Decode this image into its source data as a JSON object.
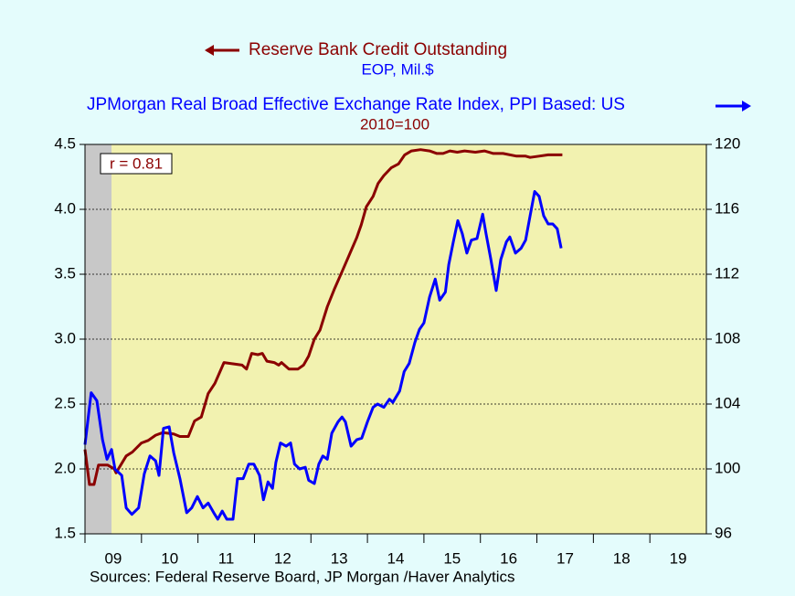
{
  "chart_data": {
    "type": "line",
    "series": [
      {
        "name": "Reserve Bank Credit Outstanding",
        "unit": "EOP, Mil.$",
        "color": "#8b0000",
        "axis": "y",
        "x": [
          2009.0,
          2009.08,
          2009.16,
          2009.24,
          2009.4,
          2009.52,
          2009.55,
          2009.73,
          2009.84,
          2010.0,
          2010.12,
          2010.25,
          2010.38,
          2010.57,
          2010.68,
          2010.83,
          2010.94,
          2011.06,
          2011.18,
          2011.3,
          2011.46,
          2011.62,
          2011.78,
          2011.86,
          2011.95,
          2012.06,
          2012.14,
          2012.22,
          2012.35,
          2012.43,
          2012.48,
          2012.61,
          2012.77,
          2012.87,
          2012.96,
          2013.06,
          2013.16,
          2013.29,
          2013.42,
          2013.55,
          2013.68,
          2013.81,
          2013.89,
          2013.98,
          2014.1,
          2014.19,
          2014.29,
          2014.42,
          2014.55,
          2014.66,
          2014.78,
          2014.94,
          2015.1,
          2015.23,
          2015.34,
          2015.46,
          2015.59,
          2015.72,
          2015.91,
          2016.07,
          2016.23,
          2016.4,
          2016.64,
          2016.8,
          2016.88,
          2017.04,
          2017.2,
          2017.45
        ],
        "values": [
          2.15,
          1.88,
          1.88,
          2.03,
          2.03,
          2.0,
          1.97,
          2.1,
          2.13,
          2.2,
          2.22,
          2.26,
          2.28,
          2.27,
          2.25,
          2.25,
          2.37,
          2.4,
          2.58,
          2.66,
          2.82,
          2.81,
          2.8,
          2.77,
          2.89,
          2.88,
          2.89,
          2.83,
          2.82,
          2.8,
          2.82,
          2.77,
          2.77,
          2.8,
          2.87,
          3.0,
          3.07,
          3.25,
          3.39,
          3.52,
          3.65,
          3.78,
          3.88,
          4.02,
          4.1,
          4.2,
          4.26,
          4.32,
          4.35,
          4.42,
          4.45,
          4.46,
          4.45,
          4.43,
          4.43,
          4.45,
          4.44,
          4.45,
          4.44,
          4.45,
          4.43,
          4.43,
          4.41,
          4.41,
          4.4,
          4.41,
          4.42,
          4.42
        ]
      },
      {
        "name": "JPMorgan Real Broad Effective Exchange Rate Index, PPI Based: US",
        "unit": "2010=100",
        "color": "#0000ff",
        "axis": "y2",
        "x": [
          2009.0,
          2009.11,
          2009.21,
          2009.31,
          2009.39,
          2009.47,
          2009.53,
          2009.65,
          2009.73,
          2009.83,
          2009.95,
          2010.05,
          2010.15,
          2010.25,
          2010.31,
          2010.39,
          2010.49,
          2010.57,
          2010.68,
          2010.8,
          2010.89,
          2010.99,
          2011.09,
          2011.18,
          2011.28,
          2011.35,
          2011.43,
          2011.51,
          2011.62,
          2011.7,
          2011.8,
          2011.9,
          2011.99,
          2012.09,
          2012.16,
          2012.24,
          2012.32,
          2012.38,
          2012.46,
          2012.56,
          2012.64,
          2012.71,
          2012.8,
          2012.9,
          2012.96,
          2013.06,
          2013.14,
          2013.21,
          2013.29,
          2013.37,
          2013.48,
          2013.55,
          2013.61,
          2013.71,
          2013.81,
          2013.9,
          2014.0,
          2014.1,
          2014.18,
          2014.29,
          2014.39,
          2014.45,
          2014.57,
          2014.65,
          2014.74,
          2014.84,
          2014.92,
          2015.0,
          2015.1,
          2015.2,
          2015.28,
          2015.38,
          2015.44,
          2015.52,
          2015.6,
          2015.68,
          2015.76,
          2015.84,
          2015.94,
          2016.04,
          2016.1,
          2016.18,
          2016.28,
          2016.36,
          2016.46,
          2016.52,
          2016.62,
          2016.72,
          2016.8,
          2016.88,
          2016.96,
          2017.04,
          2017.12,
          2017.2,
          2017.28,
          2017.36,
          2017.43
        ],
        "values": [
          101.5,
          104.7,
          104.2,
          101.8,
          100.6,
          101.2,
          100.0,
          99.6,
          97.6,
          97.2,
          97.6,
          99.7,
          100.8,
          100.5,
          99.6,
          102.5,
          102.6,
          101.0,
          99.4,
          97.3,
          97.6,
          98.3,
          97.6,
          97.9,
          97.3,
          96.9,
          97.4,
          96.9,
          96.9,
          99.4,
          99.4,
          100.3,
          100.3,
          99.6,
          98.1,
          99.2,
          98.8,
          100.4,
          101.6,
          101.4,
          101.6,
          100.3,
          100.0,
          100.1,
          99.3,
          99.1,
          100.3,
          100.8,
          100.6,
          102.2,
          102.9,
          103.2,
          102.9,
          101.4,
          101.8,
          101.9,
          102.9,
          103.8,
          104.0,
          103.8,
          104.3,
          104.1,
          104.8,
          106.0,
          106.5,
          107.8,
          108.6,
          109.0,
          110.6,
          111.7,
          110.4,
          110.9,
          112.6,
          114.0,
          115.3,
          114.5,
          113.3,
          114.1,
          114.2,
          115.7,
          114.5,
          113.0,
          111.0,
          112.9,
          114.0,
          114.3,
          113.3,
          113.6,
          114.1,
          115.6,
          117.1,
          116.8,
          115.6,
          115.1,
          115.1,
          114.8,
          113.6
        ]
      }
    ],
    "annotation": "r = 0.81",
    "source": "Sources:  Federal Reserve Board, JP Morgan /Haver Analytics",
    "recession": [
      2009.0,
      2009.47
    ],
    "xlim": [
      2009,
      2020
    ],
    "xticks": [
      {
        "value": 2009,
        "label": "09"
      },
      {
        "value": 2010,
        "label": "10"
      },
      {
        "value": 2011,
        "label": "11"
      },
      {
        "value": 2012,
        "label": "12"
      },
      {
        "value": 2013,
        "label": "13"
      },
      {
        "value": 2014,
        "label": "14"
      },
      {
        "value": 2015,
        "label": "15"
      },
      {
        "value": 2016,
        "label": "16"
      },
      {
        "value": 2017,
        "label": "17"
      },
      {
        "value": 2018,
        "label": "18"
      },
      {
        "value": 2019,
        "label": "19"
      }
    ],
    "ylim": [
      1.5,
      4.5
    ],
    "yticks": [
      {
        "value": 1.5,
        "label": "1.5"
      },
      {
        "value": 2,
        "label": "2.0"
      },
      {
        "value": 2.5,
        "label": "2.5"
      },
      {
        "value": 3,
        "label": "3.0"
      },
      {
        "value": 3.5,
        "label": "3.5"
      },
      {
        "value": 4,
        "label": "4.0"
      },
      {
        "value": 4.5,
        "label": "4.5"
      }
    ],
    "y2lim": [
      96,
      120
    ],
    "y2ticks": [
      96,
      100,
      104,
      108,
      112,
      116,
      120
    ],
    "grid": true
  }
}
